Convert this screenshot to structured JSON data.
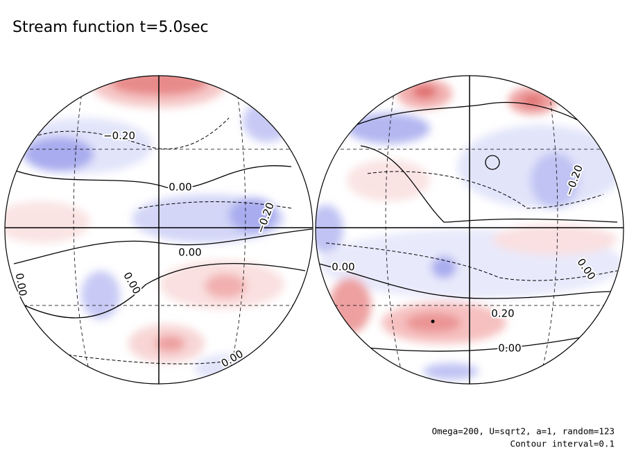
{
  "title": "Stream function t=5.0sec",
  "left_hemisphere": {
    "contour_labels": [
      "−0.20",
      "0.00",
      "−0.20",
      "0.00",
      "0.00",
      "0.00",
      "0.00"
    ]
  },
  "right_hemisphere": {
    "contour_labels": [
      "−0.20",
      "0.00",
      "0.00",
      "0.20",
      "0.00"
    ]
  },
  "footer": [
    "Omega=200, U=sqrt2, a=1, random=123",
    "Contour interval=0.1"
  ]
}
